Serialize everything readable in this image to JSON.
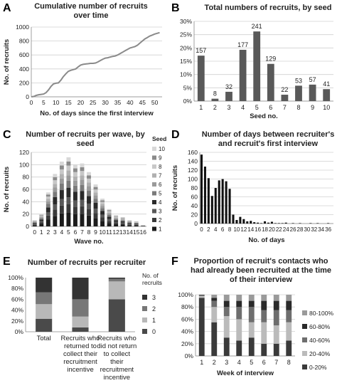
{
  "chart_data": [
    {
      "id": "A",
      "letter": "A",
      "type": "line",
      "title": [
        "Cumulative number of recruits",
        "over time"
      ],
      "xlabel": "No. of days since the first interview",
      "ylabel": "No. of recruits",
      "xlim": [
        0,
        53
      ],
      "ylim": [
        0,
        1000
      ],
      "xticks": [
        0,
        5,
        10,
        15,
        20,
        25,
        30,
        35,
        40,
        45,
        50
      ],
      "yticks": [
        0,
        200,
        400,
        600,
        800,
        1000
      ],
      "x": [
        0,
        1,
        2,
        3,
        4,
        5,
        6,
        7,
        8,
        9,
        10,
        11,
        12,
        13,
        14,
        15,
        16,
        17,
        18,
        19,
        20,
        21,
        22,
        23,
        24,
        25,
        26,
        27,
        28,
        29,
        30,
        31,
        32,
        33,
        34,
        35,
        36,
        37,
        38,
        39,
        40,
        41,
        42,
        43,
        44,
        45,
        46,
        47,
        48,
        49,
        50,
        51,
        52
      ],
      "values": [
        0,
        5,
        20,
        30,
        35,
        40,
        60,
        100,
        150,
        185,
        195,
        200,
        240,
        290,
        330,
        365,
        380,
        390,
        400,
        430,
        455,
        465,
        470,
        475,
        480,
        480,
        485,
        500,
        520,
        540,
        555,
        560,
        570,
        580,
        585,
        600,
        620,
        640,
        660,
        680,
        700,
        710,
        720,
        740,
        770,
        800,
        830,
        850,
        870,
        885,
        900,
        910,
        920
      ],
      "grid": true
    },
    {
      "id": "B",
      "letter": "B",
      "type": "bar",
      "title": [
        "Total numbers of recruits, by seed"
      ],
      "xlabel": "Seed no.",
      "ylabel": "",
      "categories": [
        "1",
        "2",
        "3",
        "4",
        "5",
        "6",
        "7",
        "8",
        "9",
        "10"
      ],
      "values": [
        17.1,
        0.9,
        3.5,
        19.3,
        26.2,
        14.0,
        2.4,
        5.8,
        6.2,
        4.5
      ],
      "data_labels": [
        "157",
        "8",
        "32",
        "177",
        "241",
        "129",
        "22",
        "53",
        "57",
        "41"
      ],
      "ylim": [
        0,
        30
      ],
      "yticks": [
        0,
        5,
        10,
        15,
        20,
        25,
        30
      ],
      "ytick_labels": [
        "0%",
        "5%",
        "10%",
        "15%",
        "20%",
        "25%",
        "30%"
      ],
      "grid": true
    },
    {
      "id": "C",
      "letter": "C",
      "type": "bar",
      "stacked": true,
      "title": [
        "Number of recruits per wave, by",
        "seed"
      ],
      "xlabel": "Wave no.",
      "ylabel": "No. of recruits",
      "categories": [
        "0",
        "1",
        "2",
        "3",
        "4",
        "5",
        "6",
        "7",
        "8",
        "9",
        "10",
        "11",
        "12",
        "13",
        "14",
        "15",
        "16"
      ],
      "totals": [
        10,
        20,
        55,
        85,
        105,
        112,
        100,
        102,
        88,
        68,
        45,
        28,
        18,
        15,
        10,
        8,
        2
      ],
      "ylim": [
        0,
        120
      ],
      "yticks": [
        0,
        20,
        40,
        60,
        80,
        100,
        120
      ],
      "legend_title": "Seed",
      "series": [
        {
          "name": "1",
          "color": "#1c1c1c"
        },
        {
          "name": "2",
          "color": "#3a3a3a"
        },
        {
          "name": "3",
          "color": "#595959"
        },
        {
          "name": "4",
          "color": "#2a2a2a"
        },
        {
          "name": "5",
          "color": "#7a7a7a"
        },
        {
          "name": "6",
          "color": "#9a9a9a"
        },
        {
          "name": "7",
          "color": "#b0b0b0"
        },
        {
          "name": "8",
          "color": "#c8c8c8"
        },
        {
          "name": "9",
          "color": "#8a8a8a"
        },
        {
          "name": "10",
          "color": "#d8d8d8"
        }
      ],
      "legend_placement": "right"
    },
    {
      "id": "D",
      "letter": "D",
      "type": "bar",
      "title": [
        "Number of days between recruiter's",
        "and recruit's first interview"
      ],
      "xlabel": "No. of days",
      "ylabel": "No. of recruits",
      "categories": [
        "0",
        "1",
        "2",
        "3",
        "4",
        "5",
        "6",
        "7",
        "8",
        "9",
        "10",
        "11",
        "12",
        "13",
        "14",
        "15",
        "16",
        "17",
        "18",
        "19",
        "20",
        "21",
        "22",
        "23",
        "24",
        "25",
        "26",
        "27",
        "28",
        "29",
        "30",
        "31",
        "32",
        "33",
        "34",
        "35",
        "36",
        "37"
      ],
      "values": [
        155,
        128,
        102,
        62,
        80,
        97,
        100,
        95,
        78,
        20,
        8,
        15,
        10,
        5,
        6,
        3,
        2,
        1,
        5,
        2,
        4,
        1,
        1,
        1,
        2,
        0,
        1,
        0,
        1,
        0,
        0,
        1,
        0,
        1,
        0,
        0,
        1,
        0
      ],
      "xtick_labels": [
        "0",
        "2",
        "4",
        "6",
        "8",
        "10",
        "12",
        "14",
        "16",
        "18",
        "20",
        "22",
        "24",
        "26",
        "28",
        "30",
        "32",
        "34",
        "36"
      ],
      "ylim": [
        0,
        160
      ],
      "yticks": [
        0,
        20,
        40,
        60,
        80,
        100,
        120,
        140,
        160
      ],
      "grid": true
    },
    {
      "id": "E",
      "letter": "E",
      "type": "bar",
      "stacked": true,
      "percent": true,
      "title": [
        "Number of recruits per recruiter"
      ],
      "categories": [
        [
          "Total"
        ],
        [
          "Recruits who",
          "returned to",
          "collect their",
          "recruitment",
          "incentive"
        ],
        [
          "Recruits who",
          "did not return",
          "to collect",
          "their",
          "recruitment",
          "incentive"
        ]
      ],
      "ylim": [
        0,
        100
      ],
      "yticks": [
        0,
        20,
        40,
        60,
        80,
        100
      ],
      "ytick_labels": [
        "0%",
        "20%",
        "40%",
        "60%",
        "80%",
        "100%"
      ],
      "legend_title": [
        "No. of",
        "recruits"
      ],
      "series": [
        {
          "name": "0",
          "color": "#4a4a4a",
          "values": [
            24,
            8,
            60
          ]
        },
        {
          "name": "1",
          "color": "#b8b8b8",
          "values": [
            27,
            20,
            33
          ]
        },
        {
          "name": "2",
          "color": "#777777",
          "values": [
            22,
            32,
            5
          ]
        },
        {
          "name": "3",
          "color": "#333333",
          "values": [
            27,
            40,
            2
          ]
        }
      ],
      "legend_placement": "right"
    },
    {
      "id": "F",
      "letter": "F",
      "type": "bar",
      "stacked": true,
      "percent": true,
      "title": [
        "Proportion of recruit's contacts who",
        "had already been recruited at the time",
        "of their interview"
      ],
      "xlabel": "Week of interview",
      "categories": [
        "1",
        "2",
        "3",
        "4",
        "5",
        "6",
        "7",
        "8"
      ],
      "ylim": [
        0,
        100
      ],
      "yticks": [
        0,
        20,
        40,
        60,
        80,
        100
      ],
      "ytick_labels": [
        "0%",
        "20%",
        "40%",
        "60%",
        "80%",
        "100%"
      ],
      "series": [
        {
          "name": "0-20%",
          "color": "#3a3a3a",
          "values": [
            95,
            55,
            30,
            25,
            30,
            20,
            20,
            25
          ]
        },
        {
          "name": "20-40%",
          "color": "#bbbbbb",
          "values": [
            3,
            25,
            35,
            35,
            25,
            35,
            30,
            30
          ]
        },
        {
          "name": "40-60%",
          "color": "#6e6e6e",
          "values": [
            1,
            10,
            15,
            20,
            25,
            20,
            25,
            20
          ]
        },
        {
          "name": "60-80%",
          "color": "#2a2a2a",
          "values": [
            1,
            5,
            10,
            10,
            10,
            15,
            15,
            15
          ]
        },
        {
          "name": "80-100%",
          "color": "#9a9a9a",
          "values": [
            0,
            5,
            10,
            10,
            10,
            10,
            10,
            10
          ]
        }
      ],
      "legend_placement": "right"
    }
  ]
}
